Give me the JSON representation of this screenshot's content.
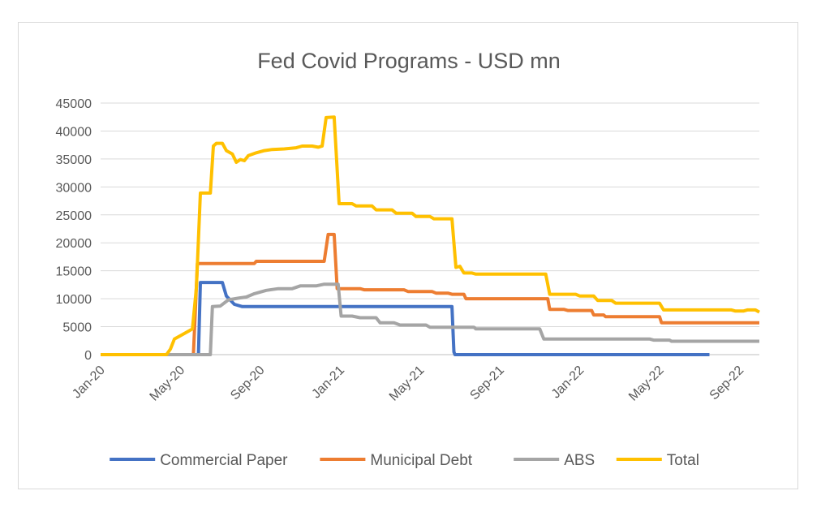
{
  "chart_data": {
    "type": "line",
    "title": "Fed Covid Programs - USD mn",
    "xlabel": "",
    "ylabel": "",
    "ylim": [
      0,
      45000
    ],
    "yticks": [
      0,
      5000,
      10000,
      15000,
      20000,
      25000,
      30000,
      35000,
      40000,
      45000
    ],
    "ytick_labels": [
      "0",
      "5000",
      "10000",
      "15000",
      "20000",
      "25000",
      "30000",
      "35000",
      "40000",
      "45000"
    ],
    "x_unit": "months since Jan-20",
    "xlim": [
      0,
      33
    ],
    "xticks": [
      0,
      4,
      8,
      12,
      16,
      20,
      24,
      28,
      32
    ],
    "xtick_labels": [
      "Jan-20",
      "May-20",
      "Sep-20",
      "Jan-21",
      "May-21",
      "Sep-21",
      "Jan-22",
      "May-22",
      "Sep-22"
    ],
    "grid": true,
    "legend_position": "bottom",
    "series": [
      {
        "name": "Commercial Paper",
        "color": "#4472C4",
        "points": [
          [
            0,
            0
          ],
          [
            4.9,
            0
          ],
          [
            5.0,
            12900
          ],
          [
            6.1,
            12900
          ],
          [
            6.3,
            10500
          ],
          [
            6.7,
            9000
          ],
          [
            7.1,
            8600
          ],
          [
            17.6,
            8600
          ],
          [
            17.7,
            500
          ],
          [
            17.75,
            0
          ],
          [
            30.5,
            0
          ]
        ]
      },
      {
        "name": "Municipal Debt",
        "color": "#ED7D31",
        "points": [
          [
            0,
            0
          ],
          [
            4.65,
            0
          ],
          [
            4.85,
            16300
          ],
          [
            7.7,
            16300
          ],
          [
            7.8,
            16700
          ],
          [
            11.2,
            16700
          ],
          [
            11.4,
            21500
          ],
          [
            11.7,
            21500
          ],
          [
            11.85,
            11800
          ],
          [
            13.0,
            11800
          ],
          [
            13.2,
            11600
          ],
          [
            15.2,
            11600
          ],
          [
            15.4,
            11300
          ],
          [
            16.6,
            11300
          ],
          [
            16.8,
            11000
          ],
          [
            17.4,
            11000
          ],
          [
            17.6,
            10800
          ],
          [
            18.2,
            10800
          ],
          [
            18.3,
            10000
          ],
          [
            22.4,
            10000
          ],
          [
            22.5,
            8100
          ],
          [
            23.2,
            8100
          ],
          [
            23.4,
            7900
          ],
          [
            24.6,
            7900
          ],
          [
            24.7,
            7100
          ],
          [
            25.2,
            7100
          ],
          [
            25.3,
            6800
          ],
          [
            28.0,
            6800
          ],
          [
            28.1,
            5700
          ],
          [
            33,
            5700
          ]
        ]
      },
      {
        "name": "ABS",
        "color": "#A5A5A5",
        "points": [
          [
            0,
            0
          ],
          [
            5.5,
            0
          ],
          [
            5.6,
            8600
          ],
          [
            6.0,
            8700
          ],
          [
            6.4,
            9800
          ],
          [
            6.9,
            10100
          ],
          [
            7.3,
            10300
          ],
          [
            7.7,
            10900
          ],
          [
            8.3,
            11500
          ],
          [
            8.9,
            11800
          ],
          [
            9.6,
            11800
          ],
          [
            10.0,
            12300
          ],
          [
            10.8,
            12300
          ],
          [
            11.2,
            12600
          ],
          [
            11.9,
            12600
          ],
          [
            12.05,
            6900
          ],
          [
            12.6,
            6900
          ],
          [
            13.0,
            6600
          ],
          [
            13.8,
            6600
          ],
          [
            14.0,
            5700
          ],
          [
            14.7,
            5700
          ],
          [
            15.0,
            5300
          ],
          [
            16.3,
            5300
          ],
          [
            16.5,
            4900
          ],
          [
            18.7,
            4900
          ],
          [
            18.8,
            4600
          ],
          [
            22.0,
            4600
          ],
          [
            22.2,
            2800
          ],
          [
            27.5,
            2800
          ],
          [
            27.7,
            2600
          ],
          [
            28.5,
            2600
          ],
          [
            28.6,
            2400
          ],
          [
            33,
            2400
          ]
        ]
      },
      {
        "name": "Total",
        "color": "#FFC000",
        "points": [
          [
            0,
            0
          ],
          [
            3.3,
            0
          ],
          [
            3.5,
            1000
          ],
          [
            3.7,
            2800
          ],
          [
            4.1,
            3600
          ],
          [
            4.4,
            4200
          ],
          [
            4.6,
            4600
          ],
          [
            4.8,
            12000
          ],
          [
            5.0,
            28900
          ],
          [
            5.5,
            28900
          ],
          [
            5.65,
            37300
          ],
          [
            5.8,
            37800
          ],
          [
            6.1,
            37800
          ],
          [
            6.3,
            36500
          ],
          [
            6.6,
            35900
          ],
          [
            6.8,
            34400
          ],
          [
            7.0,
            34900
          ],
          [
            7.2,
            34700
          ],
          [
            7.4,
            35600
          ],
          [
            7.8,
            36100
          ],
          [
            8.2,
            36500
          ],
          [
            8.6,
            36700
          ],
          [
            9.2,
            36800
          ],
          [
            9.8,
            37000
          ],
          [
            10.1,
            37300
          ],
          [
            10.6,
            37300
          ],
          [
            10.9,
            37100
          ],
          [
            11.1,
            37300
          ],
          [
            11.3,
            42400
          ],
          [
            11.7,
            42500
          ],
          [
            11.95,
            27000
          ],
          [
            12.6,
            27000
          ],
          [
            12.8,
            26600
          ],
          [
            13.6,
            26600
          ],
          [
            13.8,
            25900
          ],
          [
            14.6,
            25900
          ],
          [
            14.8,
            25300
          ],
          [
            15.6,
            25300
          ],
          [
            15.8,
            24700
          ],
          [
            16.5,
            24700
          ],
          [
            16.7,
            24300
          ],
          [
            17.6,
            24300
          ],
          [
            17.8,
            15600
          ],
          [
            18.0,
            15800
          ],
          [
            18.2,
            14600
          ],
          [
            18.6,
            14600
          ],
          [
            18.8,
            14400
          ],
          [
            22.3,
            14400
          ],
          [
            22.5,
            10800
          ],
          [
            23.8,
            10800
          ],
          [
            24.0,
            10500
          ],
          [
            24.7,
            10500
          ],
          [
            24.9,
            9700
          ],
          [
            25.6,
            9700
          ],
          [
            25.8,
            9200
          ],
          [
            28.0,
            9200
          ],
          [
            28.2,
            8000
          ],
          [
            31.6,
            8000
          ],
          [
            31.8,
            7800
          ],
          [
            32.2,
            7800
          ],
          [
            32.4,
            8000
          ],
          [
            32.8,
            8000
          ],
          [
            33,
            7600
          ]
        ]
      }
    ]
  }
}
